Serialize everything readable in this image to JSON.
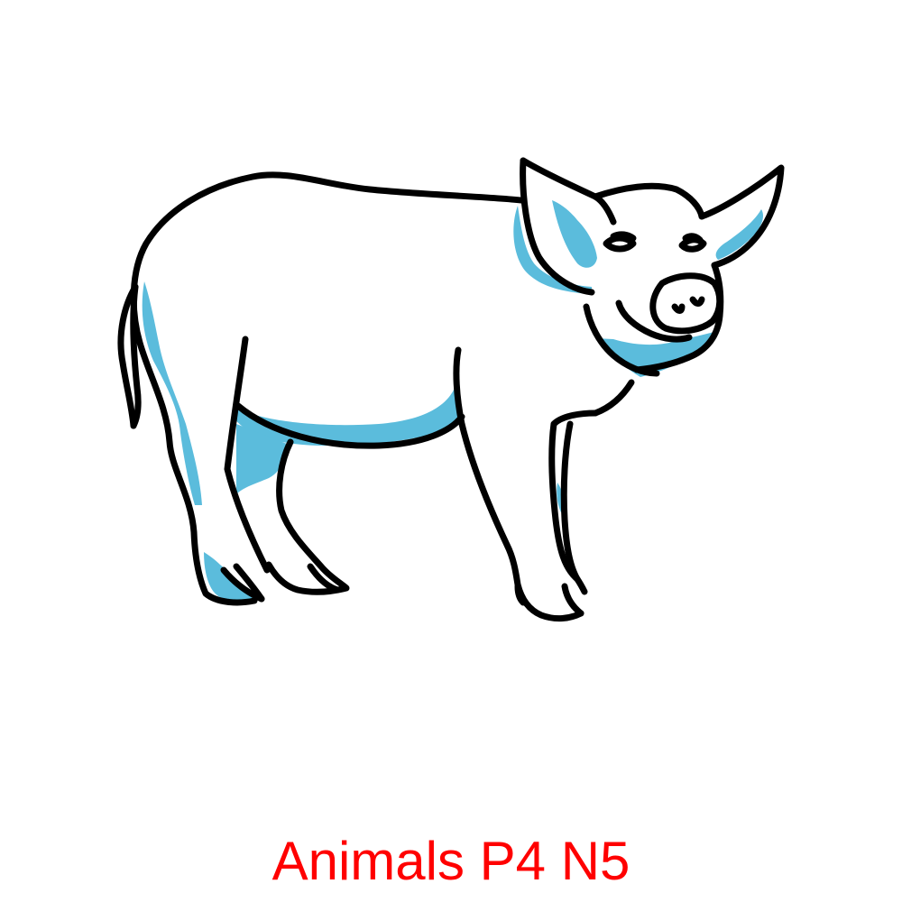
{
  "caption": {
    "text": "Animals P4 N5",
    "color": "#ff0000"
  },
  "illustration": {
    "subject_icon": "pig-icon",
    "outline_color": "#000000",
    "accent_color": "#5bbcdc",
    "background_color": "#ffffff"
  }
}
